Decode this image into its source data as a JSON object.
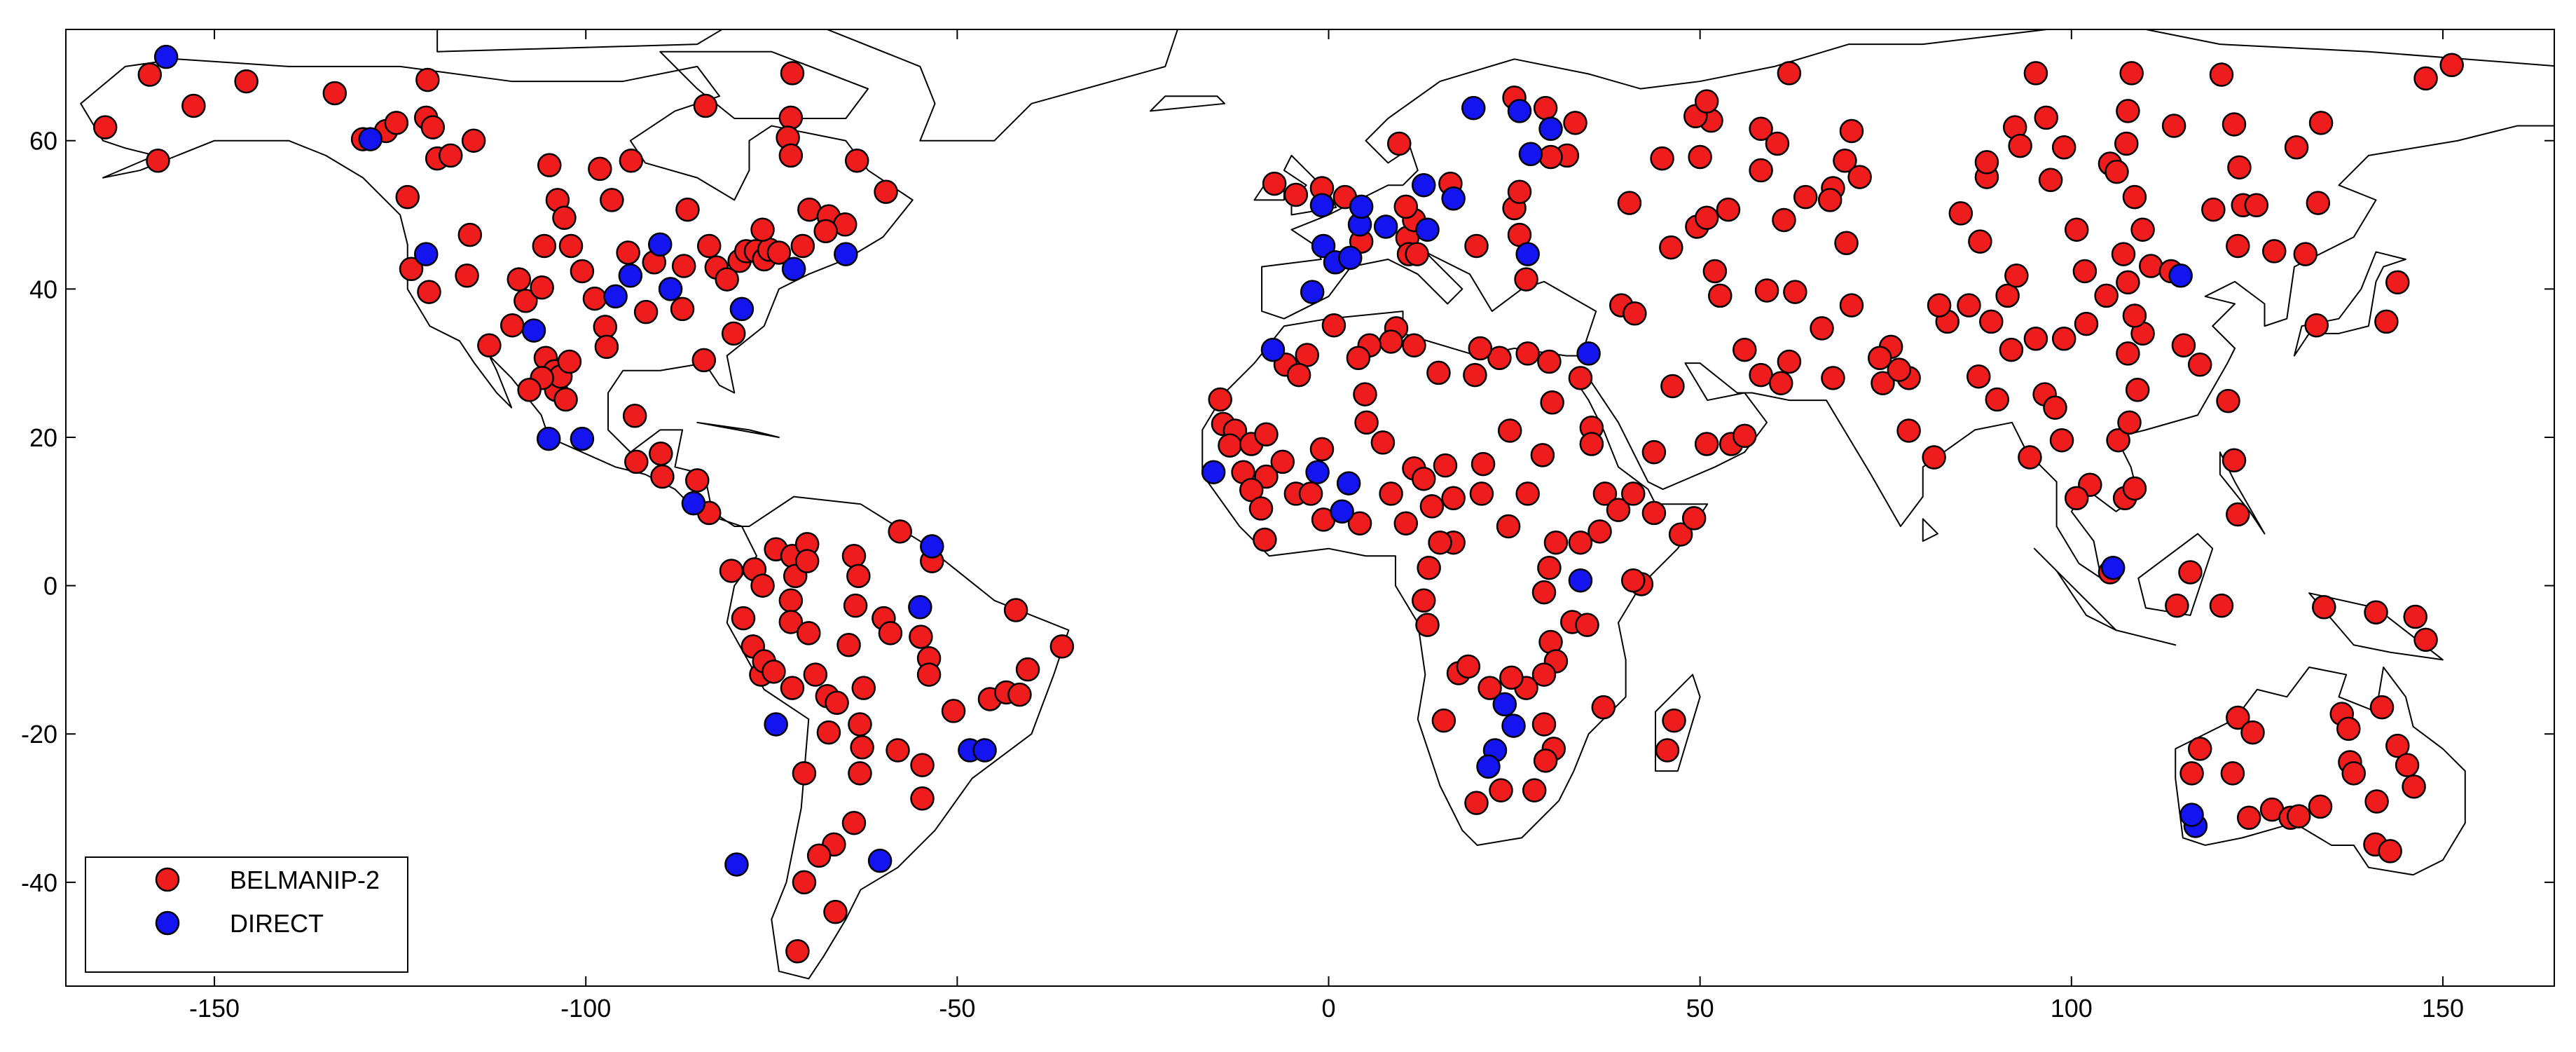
{
  "chart_data": {
    "type": "scatter",
    "xlim": [
      -170,
      165
    ],
    "ylim": [
      -54,
      75
    ],
    "xticks": [
      -150,
      -100,
      -50,
      0,
      50,
      100,
      150
    ],
    "yticks": [
      -40,
      -20,
      0,
      20,
      40,
      60
    ],
    "grid": false,
    "legend": "lower left",
    "series": [
      {
        "name": "BELMANIP-2",
        "color": "#ee1c1c",
        "x": [
          -164.7,
          -158.7,
          -157.6,
          -152.8,
          -145.7,
          -133.8,
          -130,
          -126.9,
          -125.5,
          -121.3,
          -121.5,
          -120.6,
          -120,
          -118.2,
          -115.1,
          -124,
          -123.5,
          -121.1,
          -115.6,
          -116,
          -113,
          -109.9,
          -109,
          -108.1,
          -105.9,
          -105.4,
          -104.2,
          -104,
          -103.4,
          -102.7,
          -102.2,
          -105.9,
          -107.6,
          -105.6,
          -104.9,
          -103.8,
          -102.9,
          -102,
          -100.5,
          -98.8,
          -97.4,
          -97.2,
          -96.5,
          -93.9,
          -94.3,
          -91.9,
          -90.8,
          -86.8,
          -87,
          -86.3,
          -83.4,
          -82.4,
          -81,
          -79.3,
          -78.4,
          -77.1,
          -76,
          -75.3,
          -74,
          -76.2,
          -80.1,
          -84.1,
          -72.4,
          -72.2,
          -72.8,
          -72.4,
          -69.9,
          -67.3,
          -65.1,
          -67.7,
          -70.8,
          -63.5,
          -59.6,
          -83.9,
          -93.4,
          -93.2,
          -89.9,
          -89.7,
          -85,
          -83.4,
          -98.1,
          -80.4,
          -77.3,
          -76.2,
          -74.4,
          -72.2,
          -71.8,
          -72.4,
          -70.2,
          -70.2,
          -78.8,
          -77.5,
          -76.4,
          -76,
          -74.7,
          -72.4,
          -70,
          -72.2,
          -69.1,
          -67.5,
          -66.2,
          -64.6,
          -63.9,
          -63.3,
          -63.7,
          -59.9,
          -59,
          -57.7,
          -53.4,
          -54.9,
          -53.8,
          -53.8,
          -62.6,
          -63.1,
          -62.8,
          -63.1,
          -67.3,
          -70.6,
          -58,
          -54.7,
          -50.5,
          -42.1,
          -40.5,
          -35.9,
          -45.6,
          -43.4,
          -41.6,
          -54.7,
          -63.9,
          -66.6,
          -68.6,
          -70.6,
          -66.4,
          -71.5,
          -0.9,
          -4.4,
          -7.3,
          2.2,
          4.4,
          10.6,
          10.8,
          11.9,
          11.5,
          10.4,
          9.5,
          16.4,
          19.9,
          25,
          25.7,
          25.7,
          26.6,
          25,
          29.2,
          32.1,
          33.2,
          29.9,
          40.5,
          39.4,
          41.2,
          33.9,
          26.8,
          23,
          20.4,
          19.7,
          14.8,
          11.5,
          9.1,
          8.4,
          5.5,
          4,
          0.7,
          -2.9,
          -5.8,
          -4,
          -14.6,
          -14.2,
          -12.6,
          -13.3,
          -10.4,
          -8.4,
          -8.4,
          -11.5,
          -10.4,
          -9.1,
          -8.6,
          -6.2,
          -4.4,
          -0.9,
          -2.4,
          -0.7,
          4.2,
          5.1,
          4.9,
          7.3,
          8.4,
          11.5,
          12.8,
          15.7,
          10.4,
          13.9,
          16.8,
          16.8,
          13.5,
          12.8,
          13.3,
          15,
          20.6,
          20.8,
          24.4,
          24.2,
          26.8,
          28.8,
          30.1,
          29.7,
          35.4,
          37.2,
          36.5,
          33.9,
          30.6,
          29.7,
          29,
          29.9,
          30.6,
          29,
          29,
          30.3,
          29.2,
          27.7,
          26.6,
          24.6,
          17.5,
          15.5,
          18.8,
          21.7,
          19.9,
          23.2,
          35.4,
          39,
          41,
          42.1,
          41,
          32.8,
          34.8,
          37,
          46.5,
          45.6,
          43.8,
          43.8,
          47.4,
          49.2,
          46.3,
          50.9,
          54.2,
          56,
          58.2,
          56,
          52.7,
          52,
          49.6,
          50.9,
          53.8,
          51.5,
          50,
          44.9,
          46.1,
          49.4,
          50.9,
          58.2,
          58.2,
          60.4,
          61.3,
          62,
          59,
          62.8,
          62,
          60.9,
          67.9,
          66.4,
          70.4,
          69.7,
          67.9,
          69.5,
          70.4,
          71.5,
          64.2,
          67.5,
          75.7,
          74.2,
          74.6,
          78.1,
          81.5,
          78.1,
          76.8,
          83.3,
          82.2,
          87.5,
          90,
          94.4,
          96.4,
          97.8,
          98.7,
          102.5,
          100.7,
          105.2,
          107.2,
          108.5,
          106.3,
          107.8,
          108.9,
          107.6,
          109.6,
          108.5,
          104.7,
          102,
          99,
          95.2,
          91.9,
          89.2,
          91.4,
          92.6,
          86.2,
          87.7,
          85.1,
          88.6,
          88.6,
          92.4,
          93.1,
          95.2,
          96.6,
          97.2,
          100.7,
          105.2,
          106.1,
          107.6,
          108.1,
          107.4,
          108.5,
          109.6,
          107,
          107.6,
          110.7,
          113.4,
          113.8,
          115.1,
          117.3,
          121.1,
          121.9,
          122.4,
          120.2,
          116,
          114.2,
          121.9,
          120.2,
          122.6,
          123.1,
          122.4,
          119.1,
          124.9,
          127.3,
          131.5,
          133,
          133.2,
          130.3,
          133.6,
          142.4,
          143.9,
          147.7,
          151.2,
          99,
          101.8,
          122.4,
          124.4,
          121.7,
          123.9,
          127,
          129.5,
          130.6,
          133.5,
          136.4,
          137.3,
          137.5,
          138,
          141.1,
          141.8,
          143.9,
          145.2,
          146.1,
          140.9,
          142.9,
          116.2,
          117.3,
          141,
          146.3,
          147.7,
          134
        ],
        "values": [
          61.8,
          68.9,
          57.3,
          64.7,
          68,
          66.4,
          60.2,
          61.3,
          62.4,
          68.2,
          63.1,
          61.8,
          57.6,
          58,
          60,
          52.4,
          42.7,
          39.6,
          47.3,
          41.8,
          32.4,
          35.1,
          41.3,
          38.4,
          40.2,
          30.7,
          28.9,
          26.4,
          28.2,
          25.1,
          30.2,
          28,
          26.4,
          45.8,
          56.7,
          52,
          49.6,
          45.8,
          42.4,
          38.7,
          34.9,
          32.2,
          52,
          57.3,
          44.9,
          36.9,
          43.6,
          43.1,
          37.3,
          50.7,
          45.8,
          42.9,
          41.3,
          43.8,
          45.1,
          45.1,
          44,
          45.3,
          44.9,
          48,
          34,
          30.4,
          63.1,
          69.1,
          60.4,
          58,
          50.7,
          49.8,
          48.7,
          47.8,
          45.8,
          57.3,
          53.1,
          64.7,
          22.9,
          16.7,
          17.8,
          14.7,
          14.2,
          9.8,
          56.2,
          2,
          2.2,
          0,
          4.9,
          4,
          1.3,
          -2,
          5.6,
          3.3,
          -4.4,
          -8.2,
          -12,
          -10.2,
          -11.6,
          -4.9,
          -6.4,
          -13.8,
          -12,
          -14.9,
          -15.8,
          -8,
          4,
          1.3,
          -2.7,
          -4.4,
          -6.4,
          7.3,
          3.3,
          -6.9,
          -9.8,
          -12,
          -13.8,
          -18.7,
          -21.8,
          -25.3,
          -19.8,
          -25.3,
          -22.2,
          -24.2,
          -16.9,
          -3.3,
          -11.3,
          -8.2,
          -15.3,
          -14.4,
          -14.7,
          -28.7,
          -32,
          -34.9,
          -36.4,
          -40,
          -44,
          -49.3,
          53.6,
          52.7,
          54.2,
          52.4,
          46.4,
          46.9,
          44.7,
          44.7,
          49.3,
          51.1,
          59.6,
          54.2,
          45.8,
          50.9,
          53.1,
          47.3,
          41.3,
          65.8,
          64.4,
          58,
          62.4,
          57.8,
          51.6,
          37.8,
          36.7,
          28,
          31.3,
          30.7,
          32,
          28.4,
          28.7,
          32.4,
          34.7,
          32.9,
          32.4,
          30.7,
          35.1,
          31.1,
          29.8,
          28.4,
          25.1,
          21.8,
          20.9,
          18.9,
          19.1,
          20.4,
          14.7,
          15.3,
          12.9,
          10.4,
          6.2,
          16.7,
          12.4,
          18.4,
          12.4,
          8.9,
          8.4,
          22,
          25.8,
          19.3,
          12.4,
          15.8,
          14.4,
          16.2,
          8.4,
          10.7,
          11.8,
          5.8,
          2.4,
          -2,
          -5.3,
          5.8,
          12.4,
          16.4,
          20.9,
          8,
          12.4,
          17.6,
          24.7,
          30.2,
          21.3,
          12.4,
          7.3,
          5.8,
          5.8,
          2.4,
          -0.9,
          -7.6,
          -10.2,
          -12,
          -18.7,
          -22,
          -23.6,
          -27.6,
          -13.8,
          -12.4,
          -11.8,
          -18.2,
          -10.9,
          -13.8,
          -29.3,
          -27.6,
          19.1,
          10.2,
          12.4,
          0.2,
          0.7,
          -4.9,
          -5.3,
          -16.4,
          -18.2,
          -22.2,
          18,
          9.8,
          6.9,
          9.1,
          26.9,
          19.1,
          19.1,
          20.2,
          28.4,
          31.8,
          39.1,
          42.4,
          48.4,
          49.6,
          50.7,
          62.7,
          57.8,
          57.6,
          45.6,
          63.3,
          65.3,
          61.6,
          56,
          59.6,
          49.3,
          69.1,
          39.8,
          39.6,
          30.2,
          27.3,
          28,
          34.7,
          37.8,
          46.2,
          53.6,
          57.3,
          61.3,
          55.1,
          52.4,
          52,
          32.2,
          30.7,
          27.3,
          20.9,
          17.3,
          28,
          29.1,
          35.6,
          37.8,
          28.2,
          25.1,
          17.3,
          25.8,
          24,
          19.6,
          13.6,
          11.8,
          1.8,
          11.8,
          13.1,
          19.6,
          22,
          26.4,
          31.3,
          34,
          36.4,
          39.1,
          35.3,
          33.3,
          33.3,
          31.8,
          35.6,
          39.1,
          41.8,
          37.8,
          46.4,
          50.2,
          55.1,
          57.1,
          61.8,
          59.3,
          69.1,
          63.1,
          54.7,
          48,
          56.9,
          55.8,
          64,
          69.1,
          59.6,
          52.4,
          48,
          44.7,
          40.9,
          43.1,
          42.4,
          62,
          32.4,
          29.8,
          24.9,
          16.9,
          9.6,
          -2.7,
          1.8,
          -2.7,
          62.2,
          68.9,
          56.4,
          51.3,
          45.8,
          50.7,
          51.3,
          45.1,
          44.7,
          35.1,
          51.6,
          59.1,
          62.4,
          35.6,
          40.9,
          68.4,
          70.2,
          59.1,
          42.4,
          -17.8,
          -19.8,
          -25.3,
          -31.3,
          -30.2,
          -31.3,
          -31.1,
          -29.8,
          -17.3,
          -19.3,
          -23.8,
          -25.3,
          -29.1,
          -16.4,
          -21.6,
          -24.2,
          -27.1,
          -34.9,
          -35.8,
          -25.3,
          -22,
          -3.6,
          -4.2,
          -7.3,
          -2.9
        ]
      },
      {
        "name": "DIRECT",
        "color": "#1414f0",
        "x": [
          -156.5,
          -129,
          -121.5,
          -94,
          -96,
          -90,
          -88.6,
          -107,
          -79,
          -72,
          -65,
          -105,
          -100.5,
          -85.5,
          -74.4,
          -79.7,
          -60.4,
          -53.4,
          -55,
          -48.3,
          -46.3,
          -15.5,
          -7.5,
          -2.2,
          -0.9,
          -0.7,
          0.9,
          2.9,
          4.2,
          4.4,
          7.7,
          12.8,
          13.3,
          16.8,
          25.7,
          29.9,
          27.2,
          19.5,
          26.8,
          35,
          -1.5,
          2.7,
          1.8,
          33.9,
          22.4,
          23.7,
          24.9,
          21.5,
          114.7,
          105.6,
          116.7,
          116.2
        ],
        "values": [
          71.3,
          60.2,
          44.7,
          41.8,
          39,
          46,
          40,
          34.4,
          37.3,
          42.7,
          44.7,
          19.8,
          19.8,
          11.1,
          -18.7,
          -37.6,
          -37.1,
          5.3,
          -2.9,
          -22.2,
          -22.2,
          15.3,
          31.8,
          39.6,
          51.3,
          45.8,
          43.6,
          44.2,
          48.7,
          51.1,
          48.4,
          54,
          48,
          52.2,
          64,
          61.6,
          58.2,
          64.4,
          44.7,
          31.3,
          15.3,
          13.8,
          10,
          0.7,
          -22.2,
          -16,
          -18.9,
          -24.4,
          41.8,
          2.4,
          -32.4,
          -30.9
        ]
      }
    ]
  }
}
